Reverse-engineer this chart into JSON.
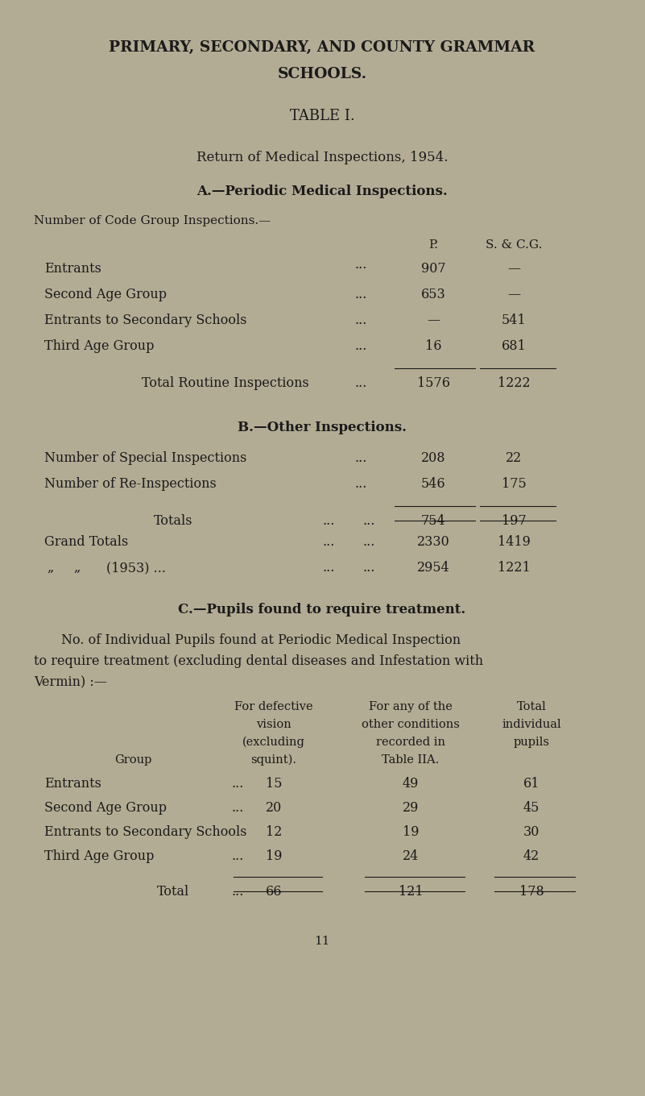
{
  "bg_color": "#b3ac94",
  "text_color": "#1a1a1a",
  "title1": "PRIMARY, SECONDARY, AND COUNTY GRAMMAR",
  "title2": "SCHOOLS.",
  "table_title": "TABLE I.",
  "subtitle": "Return of Medical Inspections, 1954.",
  "section_a": "A.—Periodic Medical Inspections.",
  "section_a_header": "Number of Code Group Inspections.—",
  "col_p": "P.",
  "col_scg": "S. & C.G.",
  "section_a_rows": [
    {
      "label": "Entrants",
      "dots": "···",
      "p": "907",
      "scg": "—"
    },
    {
      "label": "Second Age Group",
      "dots": "...",
      "p": "653",
      "scg": "—"
    },
    {
      "label": "Entrants to Secondary Schools",
      "dots": "...",
      "p": "—",
      "scg": "541"
    },
    {
      "label": "Third Age Group",
      "dots": "...",
      "p": "16",
      "scg": "681"
    }
  ],
  "total_routine_label": "Total Routine Inspections",
  "total_routine_dots": "...",
  "total_routine_p": "1576",
  "total_routine_scg": "1222",
  "section_b": "B.—Other Inspections.",
  "section_b_rows": [
    {
      "label": "Number of Special Inspections",
      "dots": "...",
      "p": "208",
      "scg": "22"
    },
    {
      "label": "Number of Re-Inspections",
      "dots": "...",
      "p": "546",
      "scg": "175"
    }
  ],
  "totals_label": "Totals",
  "totals_dots_1": "...",
  "totals_dots_2": "...",
  "totals_p": "754",
  "totals_scg": "197",
  "grand_totals_label": "Grand Totals",
  "grand_totals_dots_1": "...",
  "grand_totals_dots_2": "...",
  "grand_totals_p": "2330",
  "grand_totals_scg": "1419",
  "prev_year_lq1": "„",
  "prev_year_lq2": "„",
  "prev_year_year": "(1953) ...",
  "prev_year_dots": "...",
  "prev_year_p": "2954",
  "prev_year_scg": "1221",
  "section_c": "C.—Pupils found to require treatment.",
  "section_c_para_l1": "No. of Individual Pupils found at Periodic Medical Inspection",
  "section_c_para_l2": "to require treatment (excluding dental diseases and Infestation with",
  "section_c_para_l3": "Vermin) :—",
  "section_c_col1_l1": "For defective",
  "section_c_col1_l2": "vision",
  "section_c_col1_l3": "(excluding",
  "section_c_col1_l4": "squint).",
  "section_c_col2_l1": "For any of the",
  "section_c_col2_l2": "other conditions",
  "section_c_col2_l3": "recorded in",
  "section_c_col2_l4": "Table IIA.",
  "section_c_col3_l1": "Total",
  "section_c_col3_l2": "individual",
  "section_c_col3_l3": "pupils",
  "section_c_group_label": "Group",
  "section_c_rows": [
    {
      "label": "Entrants",
      "dots": "...",
      "c1": "15",
      "c2": "49",
      "c3": "61"
    },
    {
      "label": "Second Age Group",
      "dots": "...",
      "c1": "20",
      "c2": "29",
      "c3": "45"
    },
    {
      "label": "Entrants to Secondary Schools",
      "dots": "",
      "c1": "12",
      "c2": "19",
      "c3": "30"
    },
    {
      "label": "Third Age Group",
      "dots": "...",
      "c1": "19",
      "c2": "24",
      "c3": "42"
    }
  ],
  "section_c_total_label": "Total",
  "section_c_total_dots": "...",
  "section_c_total_c1": "66",
  "section_c_total_c2": "121",
  "section_c_total_c3": "178",
  "page_number": "11"
}
